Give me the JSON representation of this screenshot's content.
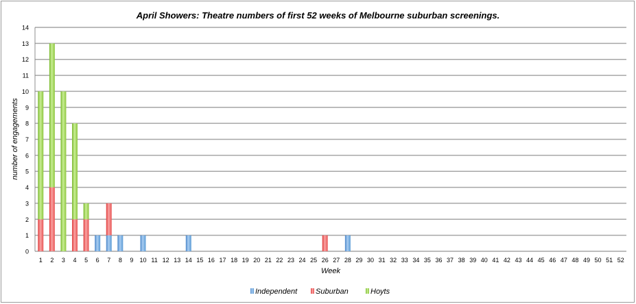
{
  "chart_data": {
    "type": "bar",
    "stacked": true,
    "title": "April Showers: Theatre numbers of first 52 weeks of Melbourne suburban screenings.",
    "xlabel": "Week",
    "ylabel": "number of engagements",
    "ylim": [
      0,
      14
    ],
    "yticks": [
      0,
      1,
      2,
      3,
      4,
      5,
      6,
      7,
      8,
      9,
      10,
      11,
      12,
      13,
      14
    ],
    "grid": true,
    "legend_position": "bottom",
    "categories": [
      "1",
      "2",
      "3",
      "4",
      "5",
      "6",
      "7",
      "8",
      "9",
      "10",
      "11",
      "12",
      "13",
      "14",
      "15",
      "16",
      "17",
      "18",
      "19",
      "20",
      "21",
      "22",
      "23",
      "24",
      "25",
      "26",
      "27",
      "28",
      "29",
      "30",
      "31",
      "32",
      "33",
      "34",
      "35",
      "36",
      "37",
      "38",
      "39",
      "40",
      "41",
      "42",
      "43",
      "44",
      "45",
      "46",
      "47",
      "48",
      "49",
      "50",
      "51",
      "52"
    ],
    "series": [
      {
        "name": "Independent",
        "color": "#5b9bd5",
        "values": [
          0,
          0,
          0,
          0,
          0,
          1,
          1,
          1,
          0,
          1,
          0,
          0,
          0,
          1,
          0,
          0,
          0,
          0,
          0,
          0,
          0,
          0,
          0,
          0,
          0,
          0,
          0,
          1,
          0,
          0,
          0,
          0,
          0,
          0,
          0,
          0,
          0,
          0,
          0,
          0,
          0,
          0,
          0,
          0,
          0,
          0,
          0,
          0,
          0,
          0,
          0,
          0
        ]
      },
      {
        "name": "Suburban",
        "color": "#e85555",
        "values": [
          2,
          4,
          0,
          2,
          2,
          0,
          2,
          0,
          0,
          0,
          0,
          0,
          0,
          0,
          0,
          0,
          0,
          0,
          0,
          0,
          0,
          0,
          0,
          0,
          0,
          1,
          0,
          0,
          0,
          0,
          0,
          0,
          0,
          0,
          0,
          0,
          0,
          0,
          0,
          0,
          0,
          0,
          0,
          0,
          0,
          0,
          0,
          0,
          0,
          0,
          0,
          0
        ]
      },
      {
        "name": "Hoyts",
        "color": "#8dc63f",
        "values": [
          8,
          9,
          10,
          6,
          1,
          0,
          0,
          0,
          0,
          0,
          0,
          0,
          0,
          0,
          0,
          0,
          0,
          0,
          0,
          0,
          0,
          0,
          0,
          0,
          0,
          0,
          0,
          0,
          0,
          0,
          0,
          0,
          0,
          0,
          0,
          0,
          0,
          0,
          0,
          0,
          0,
          0,
          0,
          0,
          0,
          0,
          0,
          0,
          0,
          0,
          0,
          0
        ]
      }
    ]
  }
}
